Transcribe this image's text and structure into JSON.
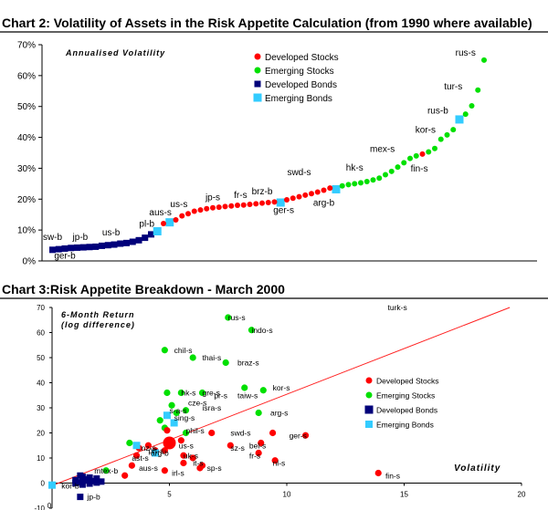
{
  "chart_data": [
    {
      "type": "scatter",
      "title": "Chart 2: Volatility of Assets in the Risk Appetite Calculation (from 1990 where available)",
      "annotation": "Annualised Volatility",
      "ylim": [
        0,
        70
      ],
      "yticks": [
        "0%",
        "10%",
        "20%",
        "30%",
        "40%",
        "50%",
        "60%",
        "70%"
      ],
      "legend": {
        "placement": "top-center",
        "entries": [
          "Developed Stocks",
          "Emerging Stocks",
          "Developed Bonds",
          "Emerging Bonds"
        ]
      },
      "colors": {
        "developed_stocks": "#ff0000",
        "emerging_stocks": "#00e000",
        "developed_bonds": "#00007a",
        "emerging_bonds": "#33ccff"
      },
      "series": [
        {
          "name": "Developed Bonds",
          "marker": "square",
          "values": [
            3.6,
            3.8,
            4.0,
            4.2,
            4.3,
            4.4,
            4.5,
            4.6,
            4.9,
            5.1,
            5.3,
            5.6,
            5.8,
            6.2,
            6.7,
            7.5,
            8.6
          ]
        },
        {
          "name": "Emerging Bonds",
          "marker": "square",
          "values": [
            {
              "i": 17,
              "v": 9.6
            },
            {
              "i": 19,
              "v": 12.5
            },
            {
              "i": 37,
              "v": 18.9
            },
            {
              "i": 46,
              "v": 23.2
            },
            {
              "i": 66,
              "v": 45.8
            }
          ]
        },
        {
          "name": "Developed Stocks",
          "marker": "circle",
          "values": [
            {
              "i": 18,
              "v": 12.1
            },
            {
              "i": 20,
              "v": 13.3
            },
            {
              "i": 21,
              "v": 14.6
            },
            {
              "i": 22,
              "v": 15.3
            },
            {
              "i": 23,
              "v": 16.1
            },
            {
              "i": 24,
              "v": 16.5
            },
            {
              "i": 25,
              "v": 16.9
            },
            {
              "i": 26,
              "v": 17.2
            },
            {
              "i": 27,
              "v": 17.4
            },
            {
              "i": 28,
              "v": 17.6
            },
            {
              "i": 29,
              "v": 17.8
            },
            {
              "i": 30,
              "v": 18.0
            },
            {
              "i": 31,
              "v": 18.1
            },
            {
              "i": 32,
              "v": 18.3
            },
            {
              "i": 33,
              "v": 18.5
            },
            {
              "i": 34,
              "v": 18.7
            },
            {
              "i": 35,
              "v": 18.9
            },
            {
              "i": 36,
              "v": 19.1
            },
            {
              "i": 38,
              "v": 19.8
            },
            {
              "i": 39,
              "v": 20.3
            },
            {
              "i": 40,
              "v": 20.8
            },
            {
              "i": 41,
              "v": 21.3
            },
            {
              "i": 42,
              "v": 21.8
            },
            {
              "i": 43,
              "v": 22.3
            },
            {
              "i": 44,
              "v": 22.9
            },
            {
              "i": 45,
              "v": 23.6
            },
            {
              "i": 60,
              "v": 34.6
            }
          ]
        },
        {
          "name": "Emerging Stocks",
          "marker": "circle",
          "values": [
            {
              "i": 47,
              "v": 24.3
            },
            {
              "i": 48,
              "v": 24.7
            },
            {
              "i": 49,
              "v": 25.0
            },
            {
              "i": 50,
              "v": 25.3
            },
            {
              "i": 51,
              "v": 25.7
            },
            {
              "i": 52,
              "v": 26.2
            },
            {
              "i": 53,
              "v": 26.8
            },
            {
              "i": 54,
              "v": 27.9
            },
            {
              "i": 55,
              "v": 29.0
            },
            {
              "i": 56,
              "v": 30.4
            },
            {
              "i": 57,
              "v": 31.8
            },
            {
              "i": 58,
              "v": 33.2
            },
            {
              "i": 59,
              "v": 34.0
            },
            {
              "i": 61,
              "v": 35.3
            },
            {
              "i": 62,
              "v": 36.4
            },
            {
              "i": 63,
              "v": 39.4
            },
            {
              "i": 64,
              "v": 40.8
            },
            {
              "i": 65,
              "v": 42.5
            },
            {
              "i": 67,
              "v": 47.5
            },
            {
              "i": 68,
              "v": 50.2
            },
            {
              "i": 69,
              "v": 55.3
            },
            {
              "i": 70,
              "v": 65.0
            }
          ]
        }
      ],
      "point_labels": [
        {
          "text": "sw-b",
          "i": 0,
          "v": 6.8
        },
        {
          "text": "ger-b",
          "i": 2,
          "v": 0.8
        },
        {
          "text": "jp-b",
          "i": 4.5,
          "v": 6.8
        },
        {
          "text": "us-b",
          "i": 9.5,
          "v": 8.3
        },
        {
          "text": "pl-b",
          "i": 15.3,
          "v": 11.1
        },
        {
          "text": "aus-s",
          "i": 17.5,
          "v": 14.8
        },
        {
          "text": "us-s",
          "i": 20.5,
          "v": 17.4
        },
        {
          "text": "jp-s",
          "i": 26,
          "v": 19.6
        },
        {
          "text": "fr-s",
          "i": 30.5,
          "v": 20.4
        },
        {
          "text": "brz-b",
          "i": 34,
          "v": 21.5
        },
        {
          "text": "ger-s",
          "i": 37.5,
          "v": 15.5
        },
        {
          "text": "swd-s",
          "i": 40,
          "v": 27.8
        },
        {
          "text": "arg-b",
          "i": 44,
          "v": 17.9
        },
        {
          "text": "hk-s",
          "i": 49,
          "v": 29.2
        },
        {
          "text": "mex-s",
          "i": 53.5,
          "v": 35.3
        },
        {
          "text": "fin-s",
          "i": 59.5,
          "v": 29.0
        },
        {
          "text": "kor-s",
          "i": 60.5,
          "v": 41.5
        },
        {
          "text": "rus-b",
          "i": 62.5,
          "v": 47.7
        },
        {
          "text": "tur-s",
          "i": 65,
          "v": 55.5
        },
        {
          "text": "rus-s",
          "i": 67,
          "v": 66.5
        }
      ]
    },
    {
      "type": "scatter",
      "title": "Chart 3:Risk Appetite Breakdown  - March 2000",
      "ylabel": "6-Month Return (log difference)",
      "xlabel": "Volatility",
      "xlim": [
        0,
        20
      ],
      "ylim": [
        -10,
        70
      ],
      "xticks": [
        0,
        5,
        10,
        15,
        20
      ],
      "yticks": [
        -10,
        0,
        10,
        20,
        30,
        40,
        50,
        60,
        70
      ],
      "legend": {
        "placement": "right",
        "entries": [
          "Developed Stocks",
          "Emerging Stocks",
          "Developed Bonds",
          "Emerging Bonds"
        ]
      },
      "regression_line": {
        "x": [
          0,
          19.5
        ],
        "y": [
          -1,
          70
        ]
      },
      "series": [
        {
          "name": "Emerging Stocks",
          "marker": "circle",
          "points": [
            {
              "x": 7.5,
              "y": 66
            },
            {
              "x": 8.5,
              "y": 61
            },
            {
              "x": 4.8,
              "y": 53
            },
            {
              "x": 6.0,
              "y": 50
            },
            {
              "x": 7.4,
              "y": 48
            },
            {
              "x": 9.0,
              "y": 37
            },
            {
              "x": 8.2,
              "y": 38
            },
            {
              "x": 5.5,
              "y": 36
            },
            {
              "x": 6.4,
              "y": 36
            },
            {
              "x": 4.9,
              "y": 36
            },
            {
              "x": 5.1,
              "y": 31
            },
            {
              "x": 5.3,
              "y": 28
            },
            {
              "x": 5.7,
              "y": 29
            },
            {
              "x": 8.8,
              "y": 28
            },
            {
              "x": 4.6,
              "y": 25
            },
            {
              "x": 4.8,
              "y": 22
            },
            {
              "x": 5.7,
              "y": 20
            },
            {
              "x": 3.3,
              "y": 16
            },
            {
              "x": 2.3,
              "y": 5
            }
          ]
        },
        {
          "name": "Developed Stocks",
          "marker": "circle",
          "points": [
            {
              "x": 4.9,
              "y": 21
            },
            {
              "x": 6.8,
              "y": 20
            },
            {
              "x": 9.4,
              "y": 20
            },
            {
              "x": 10.8,
              "y": 19
            },
            {
              "x": 5.0,
              "y": 16,
              "large": true
            },
            {
              "x": 5.5,
              "y": 17
            },
            {
              "x": 4.1,
              "y": 15
            },
            {
              "x": 3.7,
              "y": 14
            },
            {
              "x": 4.4,
              "y": 13
            },
            {
              "x": 4.8,
              "y": 13
            },
            {
              "x": 3.6,
              "y": 11
            },
            {
              "x": 7.6,
              "y": 15
            },
            {
              "x": 8.9,
              "y": 16
            },
            {
              "x": 8.8,
              "y": 12
            },
            {
              "x": 5.6,
              "y": 11
            },
            {
              "x": 6.0,
              "y": 10
            },
            {
              "x": 9.5,
              "y": 9
            },
            {
              "x": 3.4,
              "y": 7
            },
            {
              "x": 3.1,
              "y": 3
            },
            {
              "x": 5.6,
              "y": 8
            },
            {
              "x": 6.4,
              "y": 7
            },
            {
              "x": 4.8,
              "y": 5
            },
            {
              "x": 6.3,
              "y": 6
            },
            {
              "x": 13.9,
              "y": 4
            }
          ]
        },
        {
          "name": "Developed Bonds",
          "marker": "square",
          "points": [
            {
              "x": 1.2,
              "y": 3
            },
            {
              "x": 1.3,
              "y": 2.5
            },
            {
              "x": 1.6,
              "y": 2.2
            },
            {
              "x": 1.9,
              "y": 1.8
            },
            {
              "x": 1.5,
              "y": 1.5
            },
            {
              "x": 1.0,
              "y": 1.2
            },
            {
              "x": 1.4,
              "y": 1.0
            },
            {
              "x": 1.7,
              "y": 0.8
            },
            {
              "x": 2.1,
              "y": 0.6
            },
            {
              "x": 1.2,
              "y": 0.3
            },
            {
              "x": 1.0,
              "y": 0
            },
            {
              "x": 1.6,
              "y": -0.2
            },
            {
              "x": 1.3,
              "y": -0.6
            },
            {
              "x": 1.9,
              "y": 0.2
            },
            {
              "x": 1.2,
              "y": -5.5
            }
          ]
        },
        {
          "name": "Emerging Bonds",
          "marker": "square",
          "points": [
            {
              "x": 4.9,
              "y": 27
            },
            {
              "x": 5.2,
              "y": 24
            },
            {
              "x": 3.6,
              "y": 15
            },
            {
              "x": 4.4,
              "y": 12
            },
            {
              "x": 0.0,
              "y": -0.8
            }
          ]
        }
      ],
      "point_labels": [
        {
          "text": "rus-s",
          "x": 7.5,
          "y": 66
        },
        {
          "text": "indo-s",
          "x": 8.5,
          "y": 61
        },
        {
          "text": "turk-s",
          "x": 14.3,
          "y": 70
        },
        {
          "text": "chil-s",
          "x": 5.2,
          "y": 53
        },
        {
          "text": "thai-s",
          "x": 6.4,
          "y": 50
        },
        {
          "text": "braz-s",
          "x": 7.9,
          "y": 48
        },
        {
          "text": "kor-s",
          "x": 9.4,
          "y": 38
        },
        {
          "text": "hk-s",
          "x": 5.5,
          "y": 36
        },
        {
          "text": "gre-s",
          "x": 6.4,
          "y": 36
        },
        {
          "text": "taiw-s",
          "x": 7.9,
          "y": 35
        },
        {
          "text": "pr-s",
          "x": 6.9,
          "y": 35
        },
        {
          "text": "cze-s",
          "x": 5.8,
          "y": 32
        },
        {
          "text": "isra-s",
          "x": 6.4,
          "y": 30
        },
        {
          "text": "s-a-s",
          "x": 5.0,
          "y": 29
        },
        {
          "text": "sing-s",
          "x": 5.2,
          "y": 26
        },
        {
          "text": "arg-s",
          "x": 9.3,
          "y": 28
        },
        {
          "text": "phil-s",
          "x": 5.7,
          "y": 21
        },
        {
          "text": "swd-s",
          "x": 7.6,
          "y": 20
        },
        {
          "text": "ger-s",
          "x": 10.1,
          "y": 19
        },
        {
          "text": "bel-s",
          "x": 8.4,
          "y": 15
        },
        {
          "text": "sz-s",
          "x": 7.6,
          "y": 14
        },
        {
          "text": "fr-s",
          "x": 8.4,
          "y": 11
        },
        {
          "text": "nl-s",
          "x": 9.4,
          "y": 8
        },
        {
          "text": "fin-s",
          "x": 14.2,
          "y": 3
        },
        {
          "text": "us-s",
          "x": 5.4,
          "y": 15
        },
        {
          "text": "uk-s",
          "x": 5.6,
          "y": 11
        },
        {
          "text": "it-s",
          "x": 6.0,
          "y": 8
        },
        {
          "text": "sp-s",
          "x": 6.6,
          "y": 6
        },
        {
          "text": "irl-s",
          "x": 5.1,
          "y": 4
        },
        {
          "text": "arg-b",
          "x": 4.2,
          "y": 12
        },
        {
          "text": "aus-s",
          "x": 3.7,
          "y": 6
        },
        {
          "text": "ast-s",
          "x": 3.4,
          "y": 10
        },
        {
          "text": "nz-s",
          "x": 3.8,
          "y": 14
        },
        {
          "text": "prt-s",
          "x": 4.1,
          "y": 13
        },
        {
          "text": "mtex-b",
          "x": 1.8,
          "y": 5
        },
        {
          "text": "kor-b",
          "x": 0.4,
          "y": -1
        },
        {
          "text": "jp-b",
          "x": 1.5,
          "y": -5.5
        }
      ]
    }
  ]
}
